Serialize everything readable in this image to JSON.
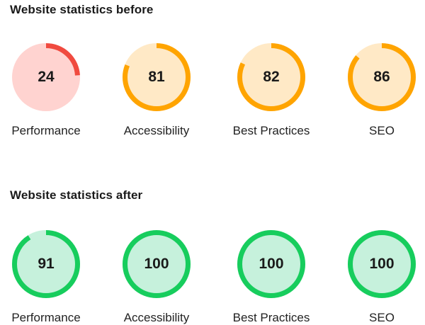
{
  "chart_data": [
    {
      "type": "gauge",
      "title": "Website statistics before",
      "categories": [
        "Performance",
        "Accessibility",
        "Best Practices",
        "SEO"
      ],
      "values": [
        24,
        81,
        82,
        86
      ],
      "max": 100
    },
    {
      "type": "gauge",
      "title": "Website statistics after",
      "categories": [
        "Performance",
        "Accessibility",
        "Best Practices",
        "SEO"
      ],
      "values": [
        91,
        100,
        100,
        100
      ],
      "max": 100
    }
  ],
  "colors": {
    "red": {
      "arc": "#f04a3f",
      "fill": "#ffd3d0"
    },
    "orange": {
      "arc": "#ffa400",
      "fill": "#ffe9c6"
    },
    "green": {
      "arc": "#17cd5d",
      "fill": "#c6f1dc"
    }
  }
}
